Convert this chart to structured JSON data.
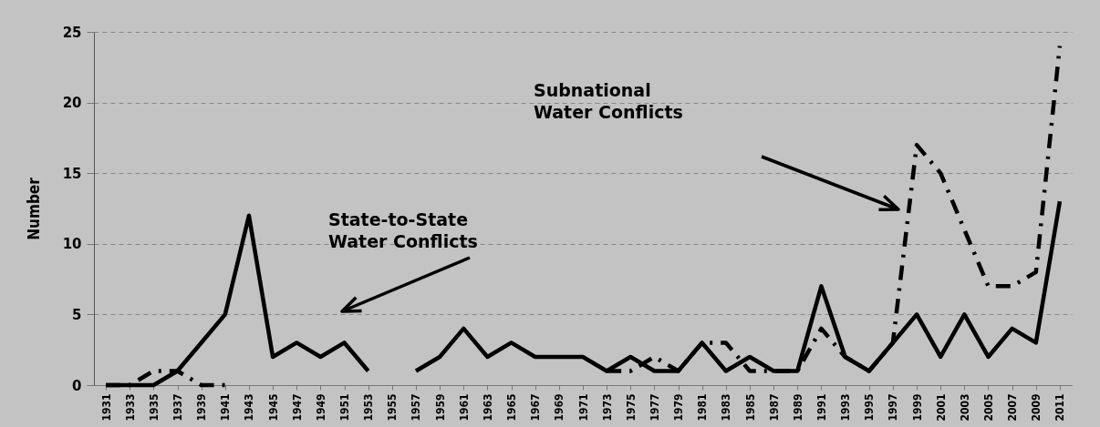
{
  "chart_data": {
    "type": "line",
    "ylabel": "Number",
    "categories": [
      "1931",
      "1933",
      "1935",
      "1937",
      "1939",
      "1941",
      "1943",
      "1945",
      "1947",
      "1949",
      "1951",
      "1953",
      "1955",
      "1957",
      "1959",
      "1961",
      "1963",
      "1965",
      "1967",
      "1969",
      "1971",
      "1973",
      "1975",
      "1977",
      "1979",
      "1981",
      "1983",
      "1985",
      "1987",
      "1989",
      "1991",
      "1993",
      "1995",
      "1997",
      "1999",
      "2001",
      "2003",
      "2005",
      "2007",
      "2009",
      "2011"
    ],
    "series": [
      {
        "color": "#000000",
        "line_style": "solid",
        "values": [
          0,
          0,
          0,
          1,
          3,
          5,
          12,
          2,
          3,
          2,
          3,
          1,
          null,
          1,
          2,
          4,
          2,
          3,
          2,
          2,
          2,
          1,
          2,
          1,
          1,
          3,
          1,
          2,
          1,
          1,
          7,
          2,
          1,
          3,
          5,
          2,
          5,
          2,
          4,
          3,
          13
        ]
      },
      {
        "color": "#000000",
        "line_style": "dashed",
        "values": [
          0,
          0,
          1,
          1,
          0,
          0,
          null,
          null,
          null,
          null,
          null,
          null,
          null,
          null,
          null,
          null,
          null,
          null,
          null,
          null,
          null,
          1,
          1,
          2,
          1,
          3,
          3,
          1,
          1,
          1,
          4,
          2,
          1,
          3,
          17,
          15,
          11,
          7,
          7,
          8,
          24
        ]
      }
    ],
    "ylim": [
      0,
      25
    ],
    "yticks": [
      0,
      5,
      10,
      15,
      20,
      25
    ],
    "grid": "y",
    "annotations": [
      "State-to-State\nWater Conflicts",
      "Subnational\nWater Conflicts"
    ]
  }
}
